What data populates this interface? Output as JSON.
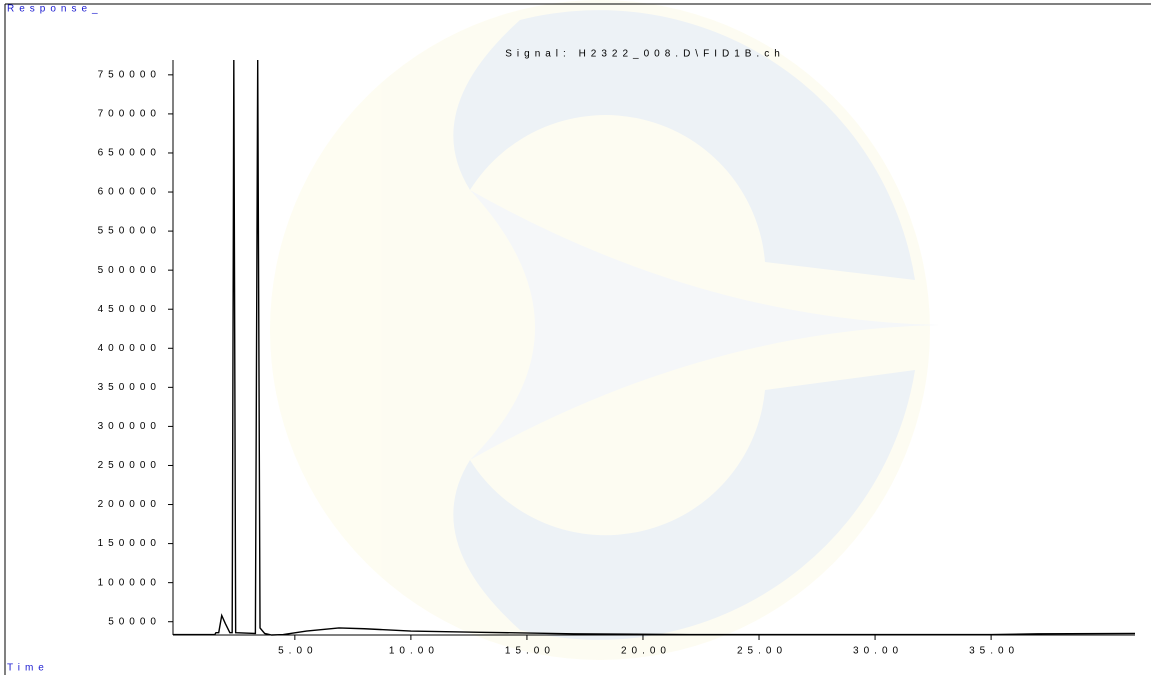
{
  "chart_data": {
    "type": "line",
    "title": "Signal: H2322_008.D\\FID1B.ch",
    "y_label": "Response_",
    "x_label": "Time",
    "x": [
      -0.25,
      1.55,
      1.6,
      1.72,
      1.85,
      2.0,
      2.2,
      2.3,
      2.37,
      2.45,
      3.3,
      3.4,
      3.5,
      3.7,
      4.0,
      4.5,
      5.5,
      6.9,
      8.0,
      10,
      13,
      17,
      22,
      35,
      37,
      41.2
    ],
    "series": [
      {
        "color": "#000000",
        "values": [
          33500,
          33500,
          36000,
          36000,
          58000,
          48000,
          36000,
          36000,
          769000,
          36000,
          35000,
          769000,
          42000,
          35000,
          33000,
          33500,
          38000,
          42000,
          41000,
          38000,
          36500,
          34500,
          33500,
          33500,
          34500,
          35000
        ]
      }
    ],
    "xlim": [
      -0.25,
      41.2
    ],
    "ylim": [
      33000,
      769000
    ],
    "xticks": [
      {
        "value": 5,
        "label": "5.00"
      },
      {
        "value": 10,
        "label": "10.00"
      },
      {
        "value": 15,
        "label": "15.00"
      },
      {
        "value": 20,
        "label": "20.00"
      },
      {
        "value": 25,
        "label": "25.00"
      },
      {
        "value": 30,
        "label": "30.00"
      },
      {
        "value": 35,
        "label": "35.00"
      }
    ],
    "yticks": [
      50000,
      100000,
      150000,
      200000,
      250000,
      300000,
      350000,
      400000,
      450000,
      500000,
      550000,
      600000,
      650000,
      700000,
      750000
    ]
  }
}
